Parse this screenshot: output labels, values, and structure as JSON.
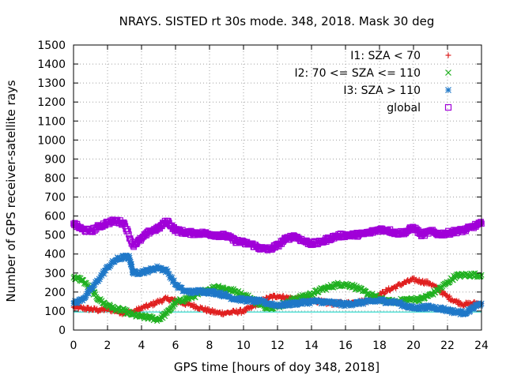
{
  "chart_data": {
    "type": "scatter",
    "title": "NRAYS. SISTED rt 30s mode. 348, 2018. Mask 30 deg",
    "xlabel": "GPS time [hours of doy 348, 2018]",
    "ylabel": "Number of GPS receiver-satellite rays",
    "xlim": [
      0,
      24
    ],
    "ylim": [
      0,
      1500
    ],
    "xticks": [
      0,
      2,
      4,
      6,
      8,
      10,
      12,
      14,
      16,
      18,
      20,
      22,
      24
    ],
    "yticks": [
      0,
      100,
      200,
      300,
      400,
      500,
      600,
      700,
      800,
      900,
      1000,
      1100,
      1200,
      1300,
      1400,
      1500
    ],
    "grid": true,
    "legend_position": "top-right",
    "reference_line": {
      "y": 95,
      "color": "#00d0c0"
    },
    "series": [
      {
        "name": "I1: SZA < 70",
        "marker": "plus",
        "color": "#e02020",
        "x": [
          0,
          0.5,
          1,
          1.5,
          2,
          2.5,
          3,
          3.5,
          4,
          4.5,
          5,
          5.5,
          6,
          6.5,
          7,
          7.5,
          8,
          8.5,
          9,
          9.5,
          10,
          10.5,
          11,
          11.5,
          12,
          12.5,
          13,
          13.5,
          14,
          14.5,
          15,
          15.5,
          16,
          16.5,
          17,
          17.5,
          18,
          18.5,
          19,
          19.5,
          20,
          20.5,
          21,
          21.5,
          22,
          22.5,
          23,
          23.5,
          24
        ],
        "y": [
          120,
          115,
          110,
          105,
          110,
          100,
          90,
          95,
          115,
          130,
          150,
          165,
          155,
          140,
          130,
          115,
          100,
          90,
          90,
          95,
          100,
          120,
          150,
          170,
          180,
          170,
          165,
          165,
          160,
          150,
          140,
          140,
          140,
          145,
          150,
          160,
          185,
          210,
          230,
          250,
          265,
          255,
          245,
          210,
          175,
          150,
          135,
          140,
          140
        ]
      },
      {
        "name": "I2: 70 <= SZA <= 110",
        "marker": "cross",
        "color": "#20b020",
        "x": [
          0,
          0.5,
          1,
          1.5,
          2,
          2.5,
          3,
          3.5,
          4,
          4.5,
          5,
          5.5,
          6,
          6.5,
          7,
          7.5,
          8,
          8.5,
          9,
          9.5,
          10,
          10.5,
          11,
          11.5,
          12,
          12.5,
          13,
          13.5,
          14,
          14.5,
          15,
          15.5,
          16,
          16.5,
          17,
          17.5,
          18,
          18.5,
          19,
          19.5,
          20,
          20.5,
          21,
          21.5,
          22,
          22.5,
          23,
          23.5,
          24
        ],
        "y": [
          275,
          265,
          215,
          160,
          130,
          110,
          100,
          80,
          70,
          65,
          55,
          90,
          145,
          160,
          175,
          195,
          215,
          230,
          215,
          205,
          185,
          165,
          130,
          120,
          125,
          140,
          165,
          175,
          190,
          210,
          225,
          240,
          240,
          230,
          205,
          185,
          165,
          150,
          150,
          160,
          160,
          165,
          185,
          215,
          250,
          285,
          290,
          290,
          290
        ]
      },
      {
        "name": "I3: SZA > 110",
        "marker": "star",
        "color": "#1f78c8",
        "x": [
          0,
          0.5,
          1,
          1.5,
          2,
          2.5,
          3,
          3.3,
          3.5,
          4,
          4.5,
          5,
          5.5,
          6,
          6.5,
          7,
          7.5,
          8,
          8.5,
          9,
          9.5,
          10,
          10.5,
          11,
          11.5,
          12,
          12.5,
          13,
          13.5,
          14,
          14.5,
          15,
          15.5,
          16,
          16.5,
          17,
          17.5,
          18,
          18.5,
          19,
          19.5,
          20,
          20.5,
          21,
          21.5,
          22,
          22.5,
          23,
          23.5,
          24
        ],
        "y": [
          140,
          160,
          210,
          270,
          330,
          370,
          385,
          380,
          300,
          305,
          315,
          330,
          310,
          240,
          205,
          200,
          205,
          200,
          195,
          180,
          165,
          160,
          155,
          150,
          140,
          130,
          135,
          140,
          145,
          150,
          150,
          145,
          140,
          135,
          140,
          145,
          150,
          155,
          150,
          145,
          130,
          115,
          120,
          120,
          115,
          105,
          95,
          90,
          115,
          140
        ]
      },
      {
        "name": "global",
        "marker": "square",
        "color": "#a000d8",
        "x": [
          0,
          0.5,
          1,
          1.5,
          2,
          2.5,
          3,
          3.5,
          4,
          4.5,
          5,
          5.5,
          6,
          6.5,
          7,
          7.5,
          8,
          8.5,
          9,
          9.5,
          10,
          10.5,
          11,
          11.5,
          12,
          12.5,
          13,
          13.5,
          14,
          14.5,
          15,
          15.5,
          16,
          16.5,
          17,
          17.5,
          18,
          18.5,
          19,
          19.5,
          20,
          20.5,
          21,
          21.5,
          22,
          22.5,
          23,
          23.5,
          24
        ],
        "y": [
          560,
          530,
          520,
          545,
          565,
          575,
          560,
          445,
          480,
          520,
          535,
          575,
          525,
          515,
          510,
          510,
          505,
          500,
          495,
          470,
          460,
          450,
          430,
          425,
          445,
          480,
          495,
          470,
          455,
          460,
          480,
          495,
          500,
          500,
          505,
          515,
          530,
          525,
          510,
          515,
          540,
          500,
          520,
          505,
          510,
          520,
          525,
          545,
          560
        ]
      }
    ]
  }
}
